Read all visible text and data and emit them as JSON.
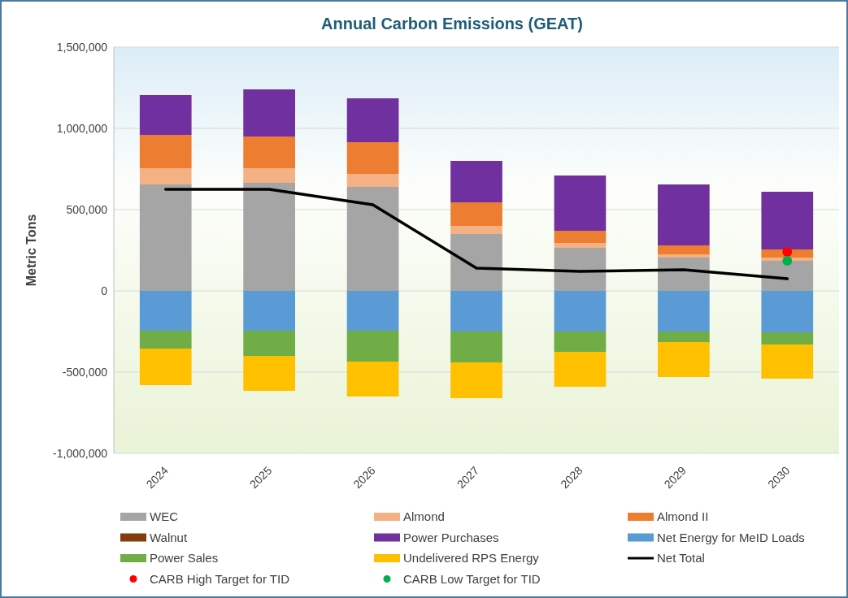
{
  "chart_data": {
    "type": "bar",
    "stacked": true,
    "title": "Annual Carbon Emissions (GEAT)",
    "ylabel": "Metric Tons",
    "categories": [
      "2024",
      "2025",
      "2026",
      "2027",
      "2028",
      "2029",
      "2030"
    ],
    "ylim": [
      -1000000,
      1500000
    ],
    "yticks": [
      {
        "value": -1000000,
        "label": "-1,000,000"
      },
      {
        "value": -500000,
        "label": "-500,000"
      },
      {
        "value": 0,
        "label": "0"
      },
      {
        "value": 500000,
        "label": "500,000"
      },
      {
        "value": 1000000,
        "label": "1,000,000"
      },
      {
        "value": 1500000,
        "label": "1,500,000"
      }
    ],
    "grid": "y",
    "legend": "bottom",
    "series": [
      {
        "name": "WEC",
        "color": "#a5a5a5",
        "values": [
          655000,
          665000,
          640000,
          350000,
          265000,
          205000,
          185000
        ]
      },
      {
        "name": "Almond",
        "color": "#f4b183",
        "values": [
          100000,
          90000,
          80000,
          50000,
          30000,
          20000,
          20000
        ]
      },
      {
        "name": "Almond II",
        "color": "#ed7d31",
        "values": [
          205000,
          195000,
          195000,
          145000,
          75000,
          55000,
          50000
        ]
      },
      {
        "name": "Walnut",
        "color": "#843c0c",
        "values": [
          0,
          0,
          0,
          0,
          0,
          0,
          0
        ]
      },
      {
        "name": "Power Purchases",
        "color": "#7030a0",
        "values": [
          245000,
          290000,
          270000,
          255000,
          340000,
          375000,
          355000
        ]
      },
      {
        "name": "Net Energy for MeID Loads",
        "color": "#5b9bd5",
        "values": [
          -245000,
          -245000,
          -245000,
          -250000,
          -250000,
          -250000,
          -255000
        ]
      },
      {
        "name": "Power Sales",
        "color": "#70ad47",
        "values": [
          -110000,
          -155000,
          -190000,
          -190000,
          -125000,
          -65000,
          -75000
        ]
      },
      {
        "name": "Undelivered RPS Energy",
        "color": "#ffc000",
        "values": [
          -225000,
          -215000,
          -215000,
          -220000,
          -215000,
          -215000,
          -210000
        ]
      },
      {
        "name": "Net Total",
        "type": "line",
        "color": "#000000",
        "values": [
          625000,
          625000,
          530000,
          140000,
          120000,
          130000,
          75000
        ]
      },
      {
        "name": "CARB High Target for TID",
        "type": "scatter",
        "color": "#ff0000",
        "marker": "circle",
        "values": [
          null,
          null,
          null,
          null,
          null,
          null,
          240000
        ]
      },
      {
        "name": "CARB Low Target for TID",
        "type": "scatter",
        "color": "#00b050",
        "marker": "circle",
        "values": [
          null,
          null,
          null,
          null,
          null,
          null,
          185000
        ]
      }
    ]
  }
}
